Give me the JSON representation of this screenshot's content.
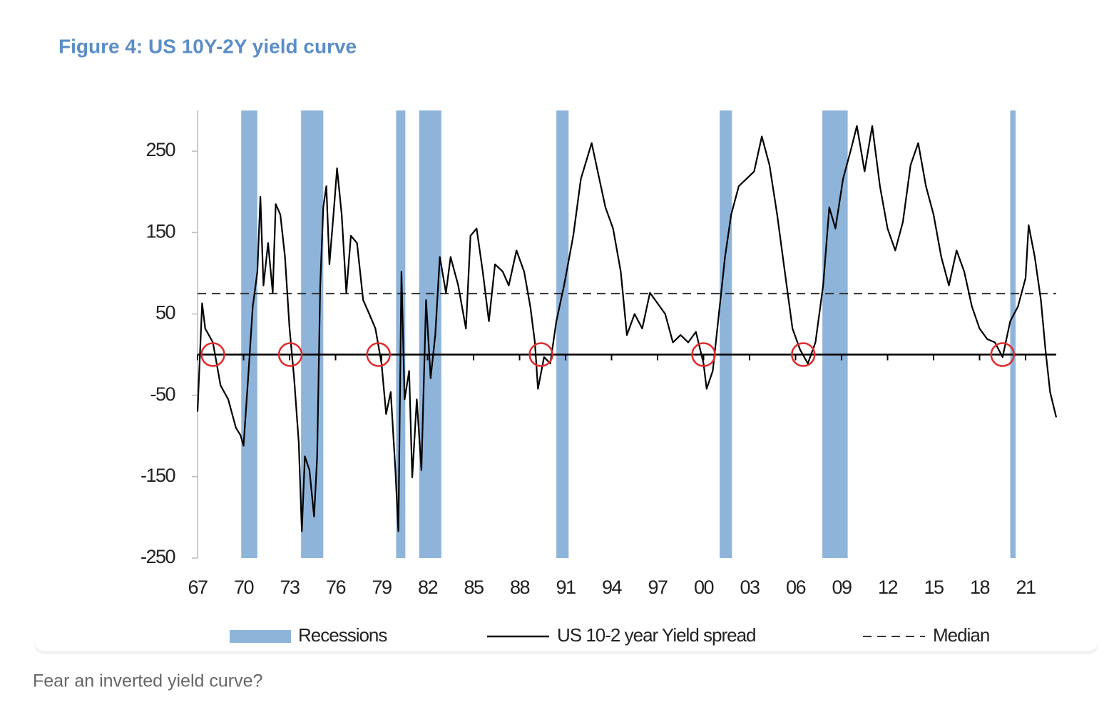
{
  "chart_data": {
    "type": "line",
    "title": "Figure 4: US 10Y-2Y yield curve",
    "x": [
      1967.0,
      1967.3,
      1967.5,
      1968.0,
      1968.5,
      1969.0,
      1969.5,
      1969.8,
      1970.0,
      1970.3,
      1970.6,
      1970.9,
      1971.1,
      1971.3,
      1971.6,
      1971.9,
      1972.1,
      1972.4,
      1972.7,
      1973.0,
      1973.3,
      1973.6,
      1973.8,
      1974.0,
      1974.3,
      1974.6,
      1974.8,
      1975.0,
      1975.2,
      1975.4,
      1975.6,
      1975.9,
      1976.1,
      1976.4,
      1976.7,
      1977.0,
      1977.4,
      1977.8,
      1978.2,
      1978.6,
      1979.0,
      1979.3,
      1979.6,
      1979.9,
      1980.1,
      1980.3,
      1980.5,
      1980.8,
      1981.0,
      1981.3,
      1981.6,
      1981.9,
      1982.2,
      1982.5,
      1982.8,
      1983.2,
      1983.5,
      1984.0,
      1984.5,
      1984.8,
      1985.2,
      1985.6,
      1986.0,
      1986.4,
      1986.9,
      1987.3,
      1987.8,
      1988.3,
      1988.7,
      1989.0,
      1989.2,
      1989.6,
      1990.0,
      1990.4,
      1990.9,
      1991.5,
      1992.0,
      1992.7,
      1993.1,
      1993.6,
      1994.1,
      1994.6,
      1995.0,
      1995.5,
      1996.0,
      1996.5,
      1997.0,
      1997.5,
      1998.0,
      1998.5,
      1999.0,
      1999.5,
      2000.0,
      2000.2,
      2000.6,
      2001.0,
      2001.4,
      2001.8,
      2002.3,
      2002.8,
      2003.3,
      2003.8,
      2004.3,
      2004.8,
      2005.3,
      2005.8,
      2006.3,
      2006.8,
      2007.3,
      2007.8,
      2008.2,
      2008.6,
      2009.1,
      2009.6,
      2010.0,
      2010.5,
      2011.0,
      2011.5,
      2012.0,
      2012.5,
      2013.0,
      2013.5,
      2014.0,
      2014.5,
      2015.0,
      2015.5,
      2016.0,
      2016.5,
      2017.0,
      2017.5,
      2018.0,
      2018.5,
      2019.0,
      2019.5,
      2020.0,
      2020.5,
      2021.0,
      2021.2,
      2021.6,
      2022.0,
      2022.3,
      2022.6,
      2023.0
    ],
    "series": [
      {
        "name": "US 10-2 year Yield spread",
        "color": "#000000",
        "values": [
          -70,
          63,
          32,
          15,
          -38,
          -55,
          -90,
          -99,
          -112,
          -29,
          59,
          102,
          194,
          85,
          137,
          76,
          185,
          172,
          120,
          32,
          -29,
          -108,
          -217,
          -125,
          -142,
          -199,
          -125,
          85,
          181,
          207,
          111,
          181,
          229,
          172,
          76,
          146,
          137,
          67,
          50,
          32,
          -11,
          -73,
          -46,
          -142,
          -217,
          102,
          -55,
          -20,
          -151,
          -55,
          -142,
          67,
          -29,
          24,
          120,
          76,
          120,
          85,
          32,
          146,
          155,
          102,
          41,
          111,
          102,
          85,
          128,
          102,
          59,
          15,
          -42,
          -3,
          -11,
          41,
          85,
          146,
          216,
          260,
          225,
          181,
          155,
          102,
          24,
          50,
          32,
          76,
          63,
          50,
          15,
          24,
          15,
          28,
          -11,
          -42,
          -20,
          50,
          120,
          172,
          207,
          216,
          225,
          268,
          233,
          172,
          102,
          32,
          6,
          -11,
          15,
          85,
          181,
          155,
          216,
          251,
          281,
          225,
          281,
          207,
          155,
          128,
          163,
          233,
          260,
          207,
          172,
          120,
          85,
          128,
          102,
          59,
          32,
          19,
          15,
          -3,
          41,
          59,
          94,
          159,
          120,
          67,
          6,
          -46,
          -77
        ]
      }
    ],
    "recessions": {
      "name": "Recessions",
      "color": "#8fb4da",
      "start": [
        1969.85,
        1973.75,
        1979.95,
        1981.45,
        1990.4,
        2001.05,
        2007.75,
        2020.0
      ],
      "end": [
        1970.9,
        1975.2,
        1980.55,
        1982.9,
        1991.2,
        2001.85,
        2009.4,
        2020.35
      ]
    },
    "median": {
      "name": "Median",
      "value": 75,
      "color": "#333333"
    },
    "circles": {
      "color": "#e02a2a",
      "x": [
        1968.0,
        1973.05,
        1978.8,
        1989.4,
        2000.0,
        2006.5,
        2019.5
      ],
      "y": [
        0,
        0,
        0,
        0,
        0,
        0,
        0
      ]
    },
    "xlim": [
      1967,
      2023
    ],
    "ylim": [
      -250,
      300
    ],
    "xticks": [
      {
        "value": 1967,
        "label": "67"
      },
      {
        "value": 1970,
        "label": "70"
      },
      {
        "value": 1973,
        "label": "73"
      },
      {
        "value": 1976,
        "label": "76"
      },
      {
        "value": 1979,
        "label": "79"
      },
      {
        "value": 1982,
        "label": "82"
      },
      {
        "value": 1985,
        "label": "85"
      },
      {
        "value": 1988,
        "label": "88"
      },
      {
        "value": 1991,
        "label": "91"
      },
      {
        "value": 1994,
        "label": "94"
      },
      {
        "value": 1997,
        "label": "97"
      },
      {
        "value": 2000,
        "label": "00"
      },
      {
        "value": 2003,
        "label": "03"
      },
      {
        "value": 2006,
        "label": "06"
      },
      {
        "value": 2009,
        "label": "09"
      },
      {
        "value": 2012,
        "label": "12"
      },
      {
        "value": 2015,
        "label": "15"
      },
      {
        "value": 2018,
        "label": "18"
      },
      {
        "value": 2021,
        "label": "21"
      }
    ],
    "yticks": [
      250,
      150,
      50,
      -50,
      -150,
      -250
    ]
  },
  "caption": "Fear an inverted yield curve?"
}
